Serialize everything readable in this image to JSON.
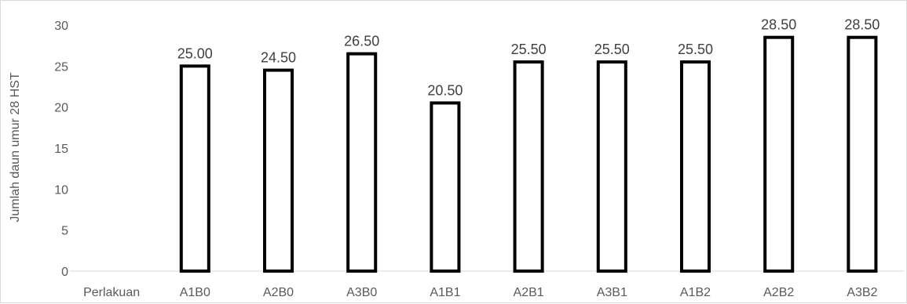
{
  "chart_data": {
    "type": "bar",
    "ylabel": "Jumlah daun umur 28 HST",
    "xlabel": "",
    "ylim": [
      0,
      30
    ],
    "yticks": [
      0,
      5,
      10,
      15,
      20,
      25,
      30
    ],
    "grid": false,
    "categories": [
      "Perlakuan",
      "A1B0",
      "A2B0",
      "A3B0",
      "A1B1",
      "A2B1",
      "A3B1",
      "A1B2",
      "A2B2",
      "A3B2"
    ],
    "values": [
      null,
      25.0,
      24.5,
      26.5,
      20.5,
      25.5,
      25.5,
      25.5,
      28.5,
      28.5
    ],
    "data_labels": [
      "",
      "25.00",
      "24.50",
      "26.50",
      "20.50",
      "25.50",
      "25.50",
      "25.50",
      "28.50",
      "28.50"
    ],
    "bar_fill": "#ffffff",
    "bar_stroke": "#000000"
  }
}
